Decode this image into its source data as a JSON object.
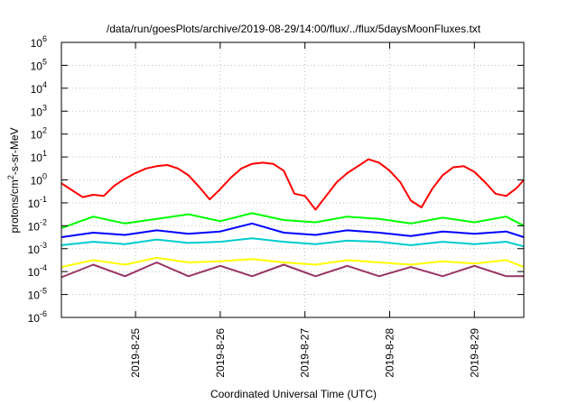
{
  "chart_data": {
    "type": "line",
    "title": "/data/run/goesPlots/archive/2019-08-29/14:00/flux/../flux/5daysMoonFluxes.txt",
    "xlabel": "Coordinated Universal Time (UTC)",
    "ylabel_base": "protons/cm",
    "ylabel_sup": "2",
    "ylabel_rest": "-s-sr-MeV",
    "y_scale": "log",
    "ylim": [
      1e-06,
      1000000.0
    ],
    "y_ticks": [
      {
        "base": "10",
        "exp": "-6",
        "value": 1e-06
      },
      {
        "base": "10",
        "exp": "-5",
        "value": 1e-05
      },
      {
        "base": "10",
        "exp": "-4",
        "value": 0.0001
      },
      {
        "base": "10",
        "exp": "-3",
        "value": 0.001
      },
      {
        "base": "10",
        "exp": "-2",
        "value": 0.01
      },
      {
        "base": "10",
        "exp": "-1",
        "value": 0.1
      },
      {
        "base": "10",
        "exp": "0",
        "value": 1
      },
      {
        "base": "10",
        "exp": "1",
        "value": 10
      },
      {
        "base": "10",
        "exp": "2",
        "value": 100
      },
      {
        "base": "10",
        "exp": "3",
        "value": 1000
      },
      {
        "base": "10",
        "exp": "4",
        "value": 10000
      },
      {
        "base": "10",
        "exp": "5",
        "value": 100000
      },
      {
        "base": "10",
        "exp": "6",
        "value": 1000000
      }
    ],
    "x_start": "2019-08-24T03:00",
    "x_end": "2019-08-29T14:00",
    "x_ticks": [
      {
        "label": "2019-8-25",
        "value": "2019-08-25T00:00"
      },
      {
        "label": "2019-8-26",
        "value": "2019-08-26T00:00"
      },
      {
        "label": "2019-8-27",
        "value": "2019-08-27T00:00"
      },
      {
        "label": "2019-8-28",
        "value": "2019-08-28T00:00"
      },
      {
        "label": "2019-8-29",
        "value": "2019-08-29T00:00"
      }
    ],
    "grid": true,
    "series_note": "Values are sampled roughly every 3 hours (time, log10 flux).",
    "series": [
      {
        "color": "#ff0000",
        "points": [
          [
            "2019-08-24T03:00",
            -0.15
          ],
          [
            "2019-08-24T06:00",
            -0.45
          ],
          [
            "2019-08-24T09:00",
            -0.75
          ],
          [
            "2019-08-24T12:00",
            -0.65
          ],
          [
            "2019-08-24T15:00",
            -0.7
          ],
          [
            "2019-08-24T18:00",
            -0.25
          ],
          [
            "2019-08-24T21:00",
            0.05
          ],
          [
            "2019-08-25T00:00",
            0.3
          ],
          [
            "2019-08-25T03:00",
            0.5
          ],
          [
            "2019-08-25T06:00",
            0.6
          ],
          [
            "2019-08-25T09:00",
            0.65
          ],
          [
            "2019-08-25T12:00",
            0.5
          ],
          [
            "2019-08-25T15:00",
            0.2
          ],
          [
            "2019-08-25T18:00",
            -0.3
          ],
          [
            "2019-08-25T21:00",
            -0.85
          ],
          [
            "2019-08-26T00:00",
            -0.4
          ],
          [
            "2019-08-26T03:00",
            0.1
          ],
          [
            "2019-08-26T06:00",
            0.5
          ],
          [
            "2019-08-26T09:00",
            0.7
          ],
          [
            "2019-08-26T12:00",
            0.75
          ],
          [
            "2019-08-26T15:00",
            0.7
          ],
          [
            "2019-08-26T18:00",
            0.4
          ],
          [
            "2019-08-26T21:00",
            -0.6
          ],
          [
            "2019-08-27T00:00",
            -0.7
          ],
          [
            "2019-08-27T03:00",
            -1.3
          ],
          [
            "2019-08-27T06:00",
            -0.7
          ],
          [
            "2019-08-27T09:00",
            -0.1
          ],
          [
            "2019-08-27T12:00",
            0.3
          ],
          [
            "2019-08-27T15:00",
            0.6
          ],
          [
            "2019-08-27T18:00",
            0.9
          ],
          [
            "2019-08-27T21:00",
            0.75
          ],
          [
            "2019-08-28T00:00",
            0.4
          ],
          [
            "2019-08-28T03:00",
            -0.1
          ],
          [
            "2019-08-28T06:00",
            -0.9
          ],
          [
            "2019-08-28T09:00",
            -1.2
          ],
          [
            "2019-08-28T12:00",
            -0.4
          ],
          [
            "2019-08-28T15:00",
            0.2
          ],
          [
            "2019-08-28T18:00",
            0.55
          ],
          [
            "2019-08-28T21:00",
            0.6
          ],
          [
            "2019-08-29T00:00",
            0.35
          ],
          [
            "2019-08-29T03:00",
            -0.1
          ],
          [
            "2019-08-29T06:00",
            -0.6
          ],
          [
            "2019-08-29T09:00",
            -0.7
          ],
          [
            "2019-08-29T12:00",
            -0.35
          ],
          [
            "2019-08-29T14:00",
            0.0
          ]
        ]
      },
      {
        "color": "#00ff00",
        "points": [
          [
            "2019-08-24T03:00",
            -2.1
          ],
          [
            "2019-08-24T12:00",
            -1.6
          ],
          [
            "2019-08-24T21:00",
            -1.9
          ],
          [
            "2019-08-25T06:00",
            -1.7
          ],
          [
            "2019-08-25T15:00",
            -1.5
          ],
          [
            "2019-08-26T00:00",
            -1.8
          ],
          [
            "2019-08-26T09:00",
            -1.45
          ],
          [
            "2019-08-26T18:00",
            -1.75
          ],
          [
            "2019-08-27T03:00",
            -1.85
          ],
          [
            "2019-08-27T12:00",
            -1.6
          ],
          [
            "2019-08-27T21:00",
            -1.7
          ],
          [
            "2019-08-28T06:00",
            -1.9
          ],
          [
            "2019-08-28T15:00",
            -1.65
          ],
          [
            "2019-08-29T00:00",
            -1.85
          ],
          [
            "2019-08-29T09:00",
            -1.6
          ],
          [
            "2019-08-29T14:00",
            -2.0
          ]
        ]
      },
      {
        "color": "#0000ff",
        "points": [
          [
            "2019-08-24T03:00",
            -2.5
          ],
          [
            "2019-08-24T12:00",
            -2.3
          ],
          [
            "2019-08-24T21:00",
            -2.4
          ],
          [
            "2019-08-25T06:00",
            -2.2
          ],
          [
            "2019-08-25T15:00",
            -2.35
          ],
          [
            "2019-08-26T00:00",
            -2.25
          ],
          [
            "2019-08-26T09:00",
            -1.9
          ],
          [
            "2019-08-26T18:00",
            -2.3
          ],
          [
            "2019-08-27T03:00",
            -2.4
          ],
          [
            "2019-08-27T12:00",
            -2.2
          ],
          [
            "2019-08-27T21:00",
            -2.3
          ],
          [
            "2019-08-28T06:00",
            -2.45
          ],
          [
            "2019-08-28T15:00",
            -2.25
          ],
          [
            "2019-08-29T00:00",
            -2.35
          ],
          [
            "2019-08-29T09:00",
            -2.25
          ],
          [
            "2019-08-29T14:00",
            -2.5
          ]
        ]
      },
      {
        "color": "#00cccc",
        "points": [
          [
            "2019-08-24T03:00",
            -2.85
          ],
          [
            "2019-08-24T12:00",
            -2.7
          ],
          [
            "2019-08-24T21:00",
            -2.8
          ],
          [
            "2019-08-25T06:00",
            -2.6
          ],
          [
            "2019-08-25T15:00",
            -2.75
          ],
          [
            "2019-08-26T00:00",
            -2.7
          ],
          [
            "2019-08-26T09:00",
            -2.55
          ],
          [
            "2019-08-26T18:00",
            -2.7
          ],
          [
            "2019-08-27T03:00",
            -2.8
          ],
          [
            "2019-08-27T12:00",
            -2.65
          ],
          [
            "2019-08-27T21:00",
            -2.7
          ],
          [
            "2019-08-28T06:00",
            -2.85
          ],
          [
            "2019-08-28T15:00",
            -2.7
          ],
          [
            "2019-08-29T00:00",
            -2.8
          ],
          [
            "2019-08-29T09:00",
            -2.7
          ],
          [
            "2019-08-29T14:00",
            -2.9
          ]
        ]
      },
      {
        "color": "#ffff00",
        "points": [
          [
            "2019-08-24T03:00",
            -3.8
          ],
          [
            "2019-08-24T12:00",
            -3.5
          ],
          [
            "2019-08-24T21:00",
            -3.7
          ],
          [
            "2019-08-25T06:00",
            -3.4
          ],
          [
            "2019-08-25T15:00",
            -3.6
          ],
          [
            "2019-08-26T00:00",
            -3.55
          ],
          [
            "2019-08-26T09:00",
            -3.45
          ],
          [
            "2019-08-26T18:00",
            -3.6
          ],
          [
            "2019-08-27T03:00",
            -3.7
          ],
          [
            "2019-08-27T12:00",
            -3.5
          ],
          [
            "2019-08-27T21:00",
            -3.6
          ],
          [
            "2019-08-28T06:00",
            -3.7
          ],
          [
            "2019-08-28T15:00",
            -3.55
          ],
          [
            "2019-08-29T00:00",
            -3.65
          ],
          [
            "2019-08-29T09:00",
            -3.5
          ],
          [
            "2019-08-29T14:00",
            -3.8
          ]
        ]
      },
      {
        "color": "#993366",
        "points": [
          [
            "2019-08-24T03:00",
            -4.25
          ],
          [
            "2019-08-24T12:00",
            -3.7
          ],
          [
            "2019-08-24T21:00",
            -4.2
          ],
          [
            "2019-08-25T06:00",
            -3.6
          ],
          [
            "2019-08-25T15:00",
            -4.2
          ],
          [
            "2019-08-26T00:00",
            -3.75
          ],
          [
            "2019-08-26T09:00",
            -4.2
          ],
          [
            "2019-08-26T18:00",
            -3.7
          ],
          [
            "2019-08-27T03:00",
            -4.2
          ],
          [
            "2019-08-27T12:00",
            -3.75
          ],
          [
            "2019-08-27T21:00",
            -4.2
          ],
          [
            "2019-08-28T06:00",
            -3.8
          ],
          [
            "2019-08-28T15:00",
            -4.2
          ],
          [
            "2019-08-29T00:00",
            -3.75
          ],
          [
            "2019-08-29T09:00",
            -4.2
          ],
          [
            "2019-08-29T14:00",
            -4.2
          ]
        ]
      }
    ]
  }
}
